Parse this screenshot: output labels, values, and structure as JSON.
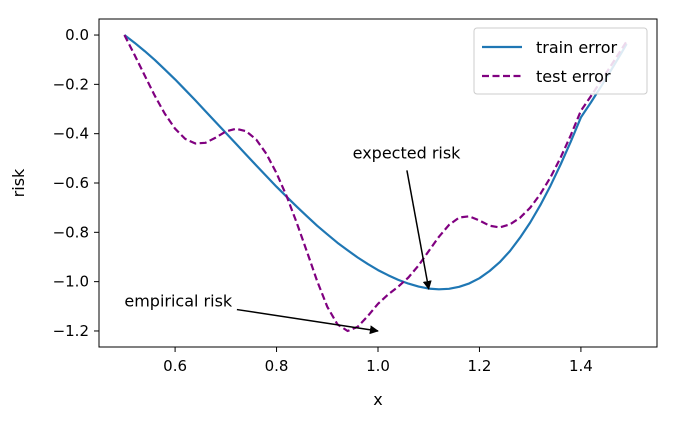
{
  "chart_data": {
    "type": "line",
    "xlabel": "x",
    "ylabel": "risk",
    "xlim": [
      0.45,
      1.55
    ],
    "ylim": [
      -1.265,
      0.065
    ],
    "xticks": [
      {
        "value": 0.6,
        "label": "0.6"
      },
      {
        "value": 0.8,
        "label": "0.8"
      },
      {
        "value": 1.0,
        "label": "1.0"
      },
      {
        "value": 1.2,
        "label": "1.2"
      },
      {
        "value": 1.4,
        "label": "1.4"
      }
    ],
    "yticks": [
      {
        "value": 0.0,
        "label": "0.0"
      },
      {
        "value": -0.2,
        "label": "−0.2"
      },
      {
        "value": -0.4,
        "label": "−0.4"
      },
      {
        "value": -0.6,
        "label": "−0.6"
      },
      {
        "value": -0.8,
        "label": "−0.8"
      },
      {
        "value": -1.0,
        "label": "−1.0"
      },
      {
        "value": -1.2,
        "label": "−1.2"
      }
    ],
    "legend_position": "top-right",
    "series": [
      {
        "name": "train error",
        "color": "#1f77b4",
        "dash": "solid",
        "x": [
          0.5,
          0.52,
          0.54,
          0.56,
          0.58,
          0.6,
          0.62,
          0.64,
          0.66,
          0.68,
          0.7,
          0.72,
          0.74,
          0.76,
          0.78,
          0.8,
          0.82,
          0.84,
          0.86,
          0.88,
          0.9,
          0.92,
          0.94,
          0.96,
          0.98,
          1.0,
          1.02,
          1.04,
          1.06,
          1.08,
          1.1,
          1.12,
          1.14,
          1.16,
          1.18,
          1.2,
          1.22,
          1.24,
          1.26,
          1.28,
          1.3,
          1.32,
          1.34,
          1.36,
          1.38,
          1.4,
          1.42,
          1.44,
          1.46,
          1.48,
          1.49
        ],
        "y": [
          0.0,
          -0.031,
          -0.065,
          -0.101,
          -0.14,
          -0.18,
          -0.222,
          -0.265,
          -0.309,
          -0.353,
          -0.397,
          -0.441,
          -0.485,
          -0.529,
          -0.572,
          -0.615,
          -0.656,
          -0.696,
          -0.735,
          -0.773,
          -0.808,
          -0.842,
          -0.873,
          -0.902,
          -0.929,
          -0.953,
          -0.974,
          -0.993,
          -1.008,
          -1.02,
          -1.028,
          -1.031,
          -1.029,
          -1.021,
          -1.007,
          -0.986,
          -0.957,
          -0.921,
          -0.876,
          -0.822,
          -0.76,
          -0.69,
          -0.611,
          -0.525,
          -0.432,
          -0.334,
          -0.272,
          -0.208,
          -0.141,
          -0.072,
          -0.036
        ]
      },
      {
        "name": "test error",
        "color": "#800080",
        "dash": "dashed",
        "x": [
          0.5,
          0.52,
          0.54,
          0.56,
          0.58,
          0.6,
          0.62,
          0.64,
          0.66,
          0.68,
          0.7,
          0.72,
          0.74,
          0.76,
          0.78,
          0.8,
          0.82,
          0.84,
          0.86,
          0.88,
          0.9,
          0.92,
          0.94,
          0.96,
          0.98,
          1.0,
          1.02,
          1.04,
          1.06,
          1.08,
          1.1,
          1.12,
          1.14,
          1.16,
          1.18,
          1.2,
          1.22,
          1.24,
          1.26,
          1.28,
          1.3,
          1.32,
          1.34,
          1.36,
          1.38,
          1.4,
          1.42,
          1.44,
          1.46,
          1.48,
          1.49
        ],
        "y": [
          0.0,
          -0.08,
          -0.164,
          -0.246,
          -0.32,
          -0.38,
          -0.421,
          -0.44,
          -0.437,
          -0.416,
          -0.391,
          -0.38,
          -0.39,
          -0.424,
          -0.482,
          -0.56,
          -0.654,
          -0.762,
          -0.879,
          -0.997,
          -1.102,
          -1.173,
          -1.2,
          -1.183,
          -1.139,
          -1.09,
          -1.052,
          -1.02,
          -0.983,
          -0.934,
          -0.876,
          -0.818,
          -0.77,
          -0.74,
          -0.735,
          -0.752,
          -0.773,
          -0.78,
          -0.768,
          -0.741,
          -0.7,
          -0.645,
          -0.577,
          -0.497,
          -0.406,
          -0.307,
          -0.247,
          -0.185,
          -0.122,
          -0.058,
          -0.026
        ]
      }
    ],
    "annotations": [
      {
        "text": "expected risk",
        "arrow_to": [
          1.1,
          -1.03
        ],
        "text_at": [
          0.95,
          -0.5
        ]
      },
      {
        "text": "empirical risk",
        "arrow_to": [
          1.0,
          -1.2
        ],
        "text_at": [
          0.5,
          -1.1
        ]
      }
    ]
  }
}
